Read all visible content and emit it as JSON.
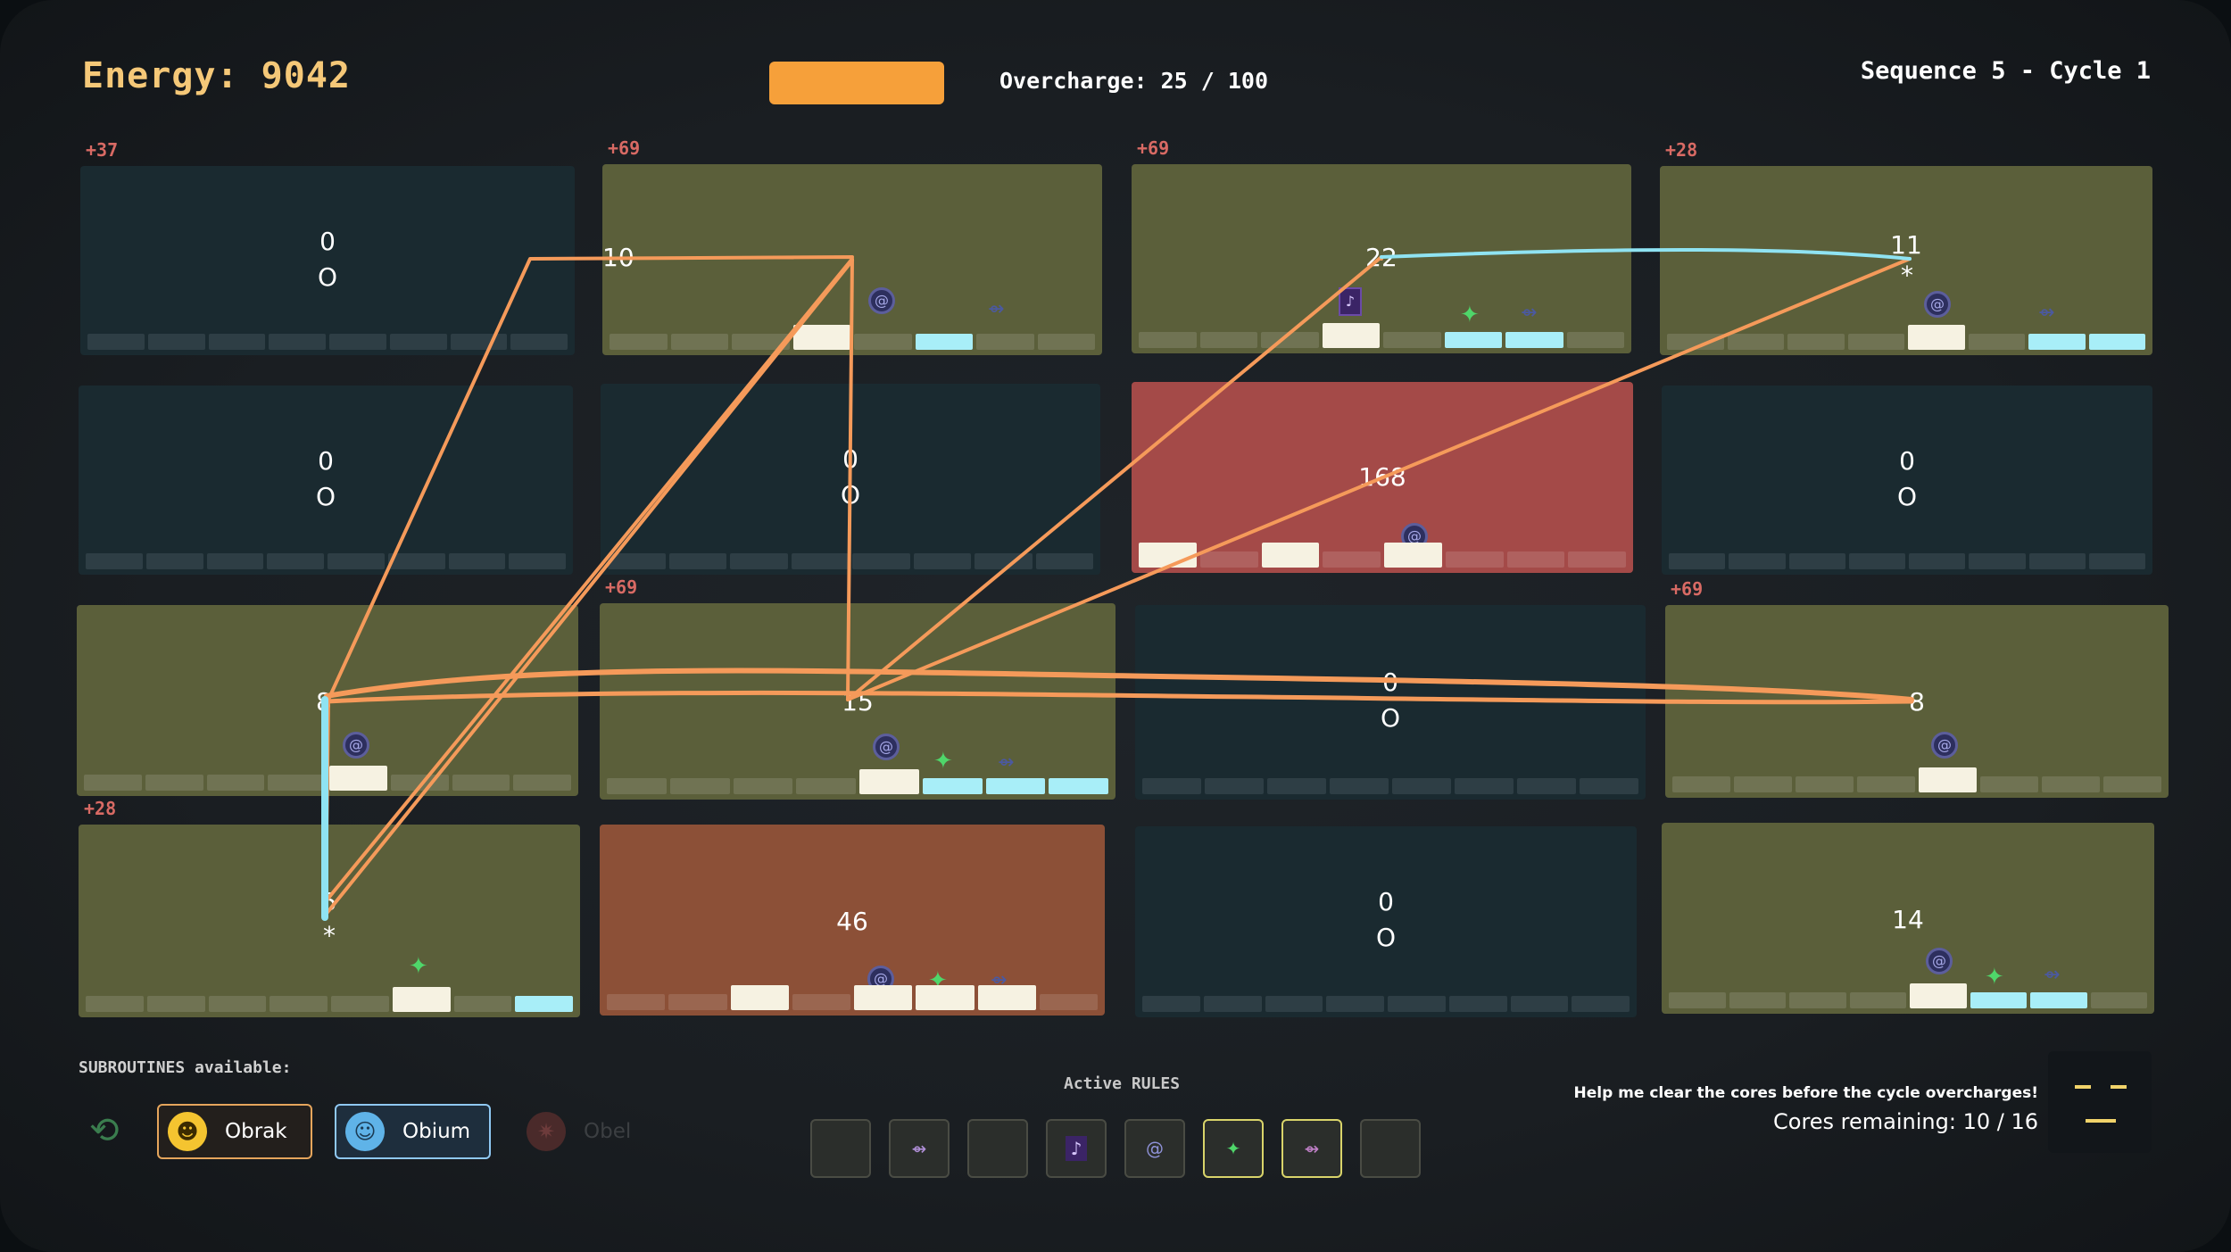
{
  "header": {
    "energy": "Energy: 9042",
    "overcharge": "Overcharge: 25 / 100",
    "overcharge_value": 25,
    "overcharge_max": 100,
    "sequence": "Sequence 5 - Cycle 1"
  },
  "cores": [
    {
      "bonus": "+37",
      "value": "0",
      "letter": "O",
      "state": "idle"
    },
    {
      "bonus": "+69",
      "value": "10",
      "state": "olive"
    },
    {
      "bonus": "+69",
      "value": "22",
      "state": "olive"
    },
    {
      "bonus": "+28",
      "value": "11",
      "state": "olive",
      "star": "*"
    },
    {
      "value": "0",
      "letter": "O",
      "state": "idle"
    },
    {
      "value": "0",
      "letter": "O",
      "state": "idle"
    },
    {
      "value": "168",
      "state": "red"
    },
    {
      "value": "0",
      "letter": "O",
      "state": "idle"
    },
    {
      "value": "8",
      "state": "olive"
    },
    {
      "bonus": "+69",
      "value": "15",
      "state": "olive"
    },
    {
      "value": "0",
      "letter": "O",
      "state": "idle"
    },
    {
      "bonus": "+69",
      "value": "8",
      "state": "olive"
    },
    {
      "bonus": "+28",
      "value": "5",
      "state": "olive",
      "star": "*"
    },
    {
      "value": "46",
      "state": "rust"
    },
    {
      "value": "0",
      "letter": "O",
      "state": "idle"
    },
    {
      "value": "14",
      "state": "olive"
    }
  ],
  "subroutines": {
    "title": "SUBROUTINES available:",
    "items": [
      {
        "name": "Obrak",
        "icon": "robot-face-icon"
      },
      {
        "name": "Obium",
        "icon": "ghost-icon"
      },
      {
        "name": "Obel",
        "icon": "bug-icon"
      }
    ]
  },
  "rules": {
    "title": "Active RULES",
    "slots": [
      {
        "icon": ""
      },
      {
        "icon": "bug-icon"
      },
      {
        "icon": ""
      },
      {
        "icon": "card-icon"
      },
      {
        "icon": "vortex-icon"
      },
      {
        "icon": "star-icon"
      },
      {
        "icon": "bug-icon"
      },
      {
        "icon": ""
      }
    ]
  },
  "status": {
    "hint": "Help me clear the cores before the cycle overcharges!",
    "cores_remaining": "Cores remaining: 10 / 16"
  },
  "colors": {
    "path_orange": "#f59a5a",
    "path_cyan": "#8fe3f2",
    "energy_gold": "#f5c878",
    "overcharge_bar": "#f6a03a",
    "bonus_red": "#d86a64",
    "face_yellow": "#f1d36a"
  }
}
